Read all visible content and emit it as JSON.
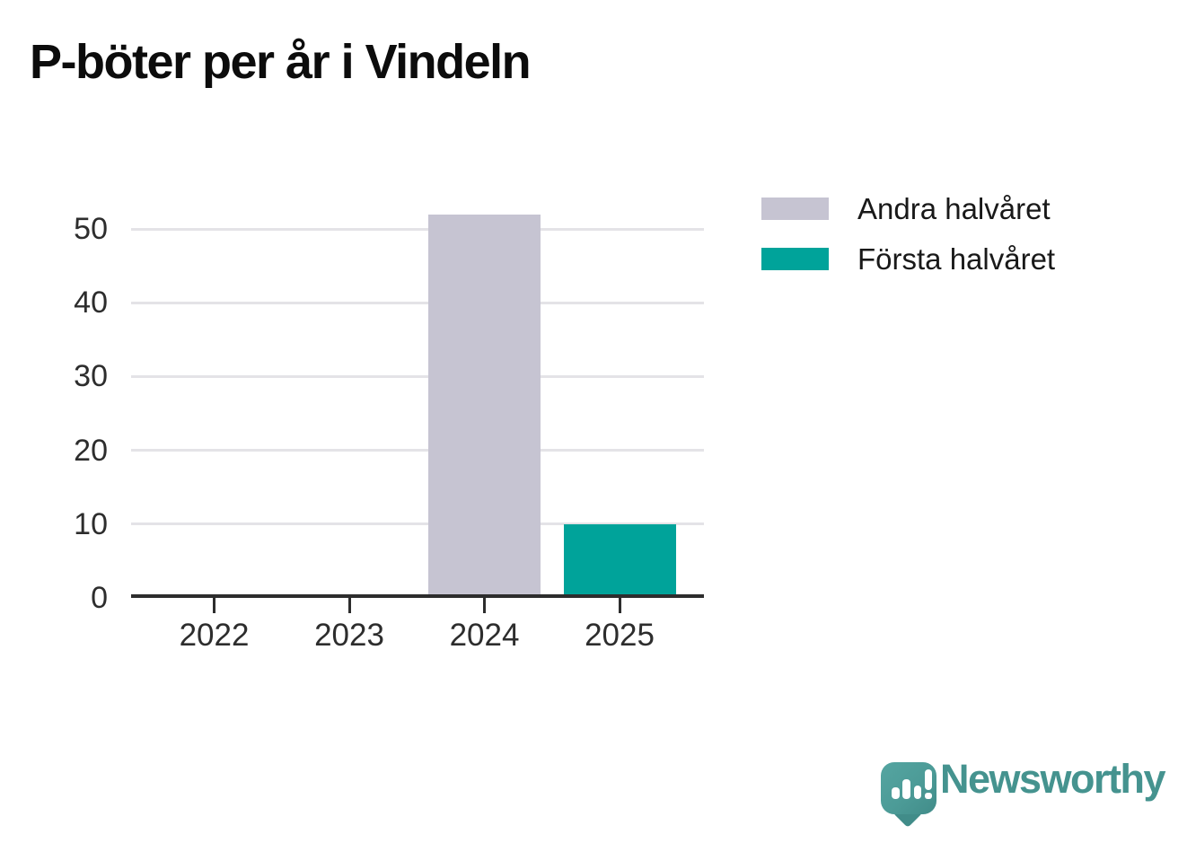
{
  "title": "P-böter per år i Vindeln",
  "chart_data": {
    "type": "bar",
    "title": "P-böter per år i Vindeln",
    "categories": [
      "2022",
      "2023",
      "2024",
      "2025"
    ],
    "series": [
      {
        "name": "Andra halvåret",
        "color": "#c6c4d2",
        "values": [
          0,
          0,
          52,
          0
        ]
      },
      {
        "name": "Första halvåret",
        "color": "#00a39a",
        "values": [
          0,
          0,
          0,
          10
        ]
      }
    ],
    "stacked": true,
    "y_ticks": [
      0,
      10,
      20,
      30,
      40,
      50
    ],
    "ylim": [
      0,
      52
    ],
    "xlabel": "",
    "ylabel": "",
    "grid": "horizontal-gridlines-only",
    "legend_position": "outside-upper-right"
  },
  "branding": {
    "logo_text": "Newsworthy",
    "logo_icon": "speech-bubble-with-bar-chart-and-exclamation"
  },
  "colors": {
    "second_half_bar": "#c6c4d2",
    "first_half_bar": "#00a39a",
    "axis": "#2d2d2d",
    "gridline": "#e4e3e7",
    "title_text": "#0c0c0c",
    "legend_text": "#191919",
    "logo_teal": "#45938f",
    "background": "#ffffff"
  }
}
